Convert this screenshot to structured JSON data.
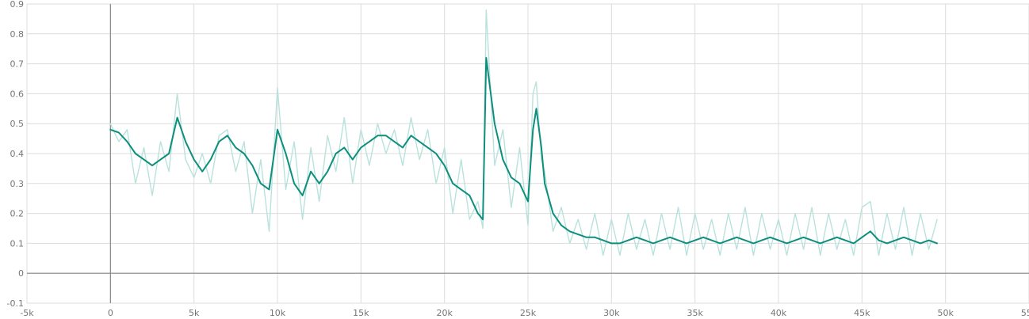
{
  "chart_data": {
    "type": "line",
    "title": "",
    "xlabel": "",
    "ylabel": "",
    "xlim": [
      -5000,
      55000
    ],
    "ylim": [
      -0.1,
      0.9
    ],
    "grid": true,
    "x_ticks": [
      -5000,
      0,
      5000,
      10000,
      15000,
      20000,
      25000,
      30000,
      35000,
      40000,
      45000,
      50000,
      55000
    ],
    "x_tick_labels": [
      "-5k",
      "0",
      "5k",
      "10k",
      "15k",
      "20k",
      "25k",
      "30k",
      "35k",
      "40k",
      "45k",
      "50k",
      "55k"
    ],
    "y_ticks": [
      -0.1,
      0,
      0.1,
      0.2,
      0.3,
      0.4,
      0.5,
      0.6,
      0.7,
      0.8,
      0.9
    ],
    "y_tick_labels": [
      "-0.1",
      "0",
      "0.1",
      "0.2",
      "0.3",
      "0.4",
      "0.5",
      "0.6",
      "0.7",
      "0.8",
      "0.9"
    ],
    "colors": {
      "smoothed": "#0e8f7e",
      "raw": "#b9e2dc"
    },
    "series": [
      {
        "role": "smoothed",
        "x": [
          0,
          500,
          1000,
          1500,
          2000,
          2500,
          3000,
          3500,
          4000,
          4500,
          5000,
          5500,
          6000,
          6500,
          7000,
          7500,
          8000,
          8500,
          9000,
          9500,
          10000,
          10500,
          11000,
          11500,
          12000,
          12500,
          13000,
          13500,
          14000,
          14500,
          15000,
          15500,
          16000,
          16500,
          17000,
          17500,
          18000,
          18500,
          19000,
          19500,
          20000,
          20500,
          21000,
          21500,
          22000,
          22300,
          22500,
          23000,
          23500,
          24000,
          24500,
          25000,
          25300,
          25500,
          25800,
          26000,
          26500,
          27000,
          27500,
          28000,
          28500,
          29000,
          29500,
          30000,
          30500,
          31000,
          31500,
          32000,
          32500,
          33000,
          33500,
          34000,
          34500,
          35000,
          35500,
          36000,
          36500,
          37000,
          37500,
          38000,
          38500,
          39000,
          39500,
          40000,
          40500,
          41000,
          41500,
          42000,
          42500,
          43000,
          43500,
          44000,
          44500,
          45000,
          45500,
          46000,
          46500,
          47000,
          47500,
          48000,
          48500,
          49000,
          49500
        ],
        "y": [
          0.48,
          0.47,
          0.44,
          0.4,
          0.38,
          0.36,
          0.38,
          0.4,
          0.52,
          0.44,
          0.38,
          0.34,
          0.38,
          0.44,
          0.46,
          0.42,
          0.4,
          0.36,
          0.3,
          0.28,
          0.48,
          0.4,
          0.3,
          0.26,
          0.34,
          0.3,
          0.34,
          0.4,
          0.42,
          0.38,
          0.42,
          0.44,
          0.46,
          0.46,
          0.44,
          0.42,
          0.46,
          0.44,
          0.42,
          0.4,
          0.36,
          0.3,
          0.28,
          0.26,
          0.2,
          0.18,
          0.72,
          0.5,
          0.38,
          0.32,
          0.3,
          0.24,
          0.48,
          0.55,
          0.42,
          0.3,
          0.2,
          0.16,
          0.14,
          0.13,
          0.12,
          0.12,
          0.11,
          0.1,
          0.1,
          0.11,
          0.12,
          0.11,
          0.1,
          0.11,
          0.12,
          0.11,
          0.1,
          0.11,
          0.12,
          0.11,
          0.1,
          0.11,
          0.12,
          0.11,
          0.1,
          0.11,
          0.12,
          0.11,
          0.1,
          0.11,
          0.12,
          0.11,
          0.1,
          0.11,
          0.12,
          0.11,
          0.1,
          0.12,
          0.14,
          0.11,
          0.1,
          0.11,
          0.12,
          0.11,
          0.1,
          0.11,
          0.1
        ]
      },
      {
        "role": "raw",
        "x": [
          0,
          500,
          1000,
          1500,
          2000,
          2500,
          3000,
          3500,
          4000,
          4500,
          5000,
          5500,
          6000,
          6500,
          7000,
          7500,
          8000,
          8500,
          9000,
          9500,
          10000,
          10500,
          11000,
          11500,
          12000,
          12500,
          13000,
          13500,
          14000,
          14500,
          15000,
          15500,
          16000,
          16500,
          17000,
          17500,
          18000,
          18500,
          19000,
          19500,
          20000,
          20500,
          21000,
          21500,
          22000,
          22300,
          22500,
          23000,
          23500,
          24000,
          24500,
          25000,
          25300,
          25500,
          25800,
          26000,
          26500,
          27000,
          27500,
          28000,
          28500,
          29000,
          29500,
          30000,
          30500,
          31000,
          31500,
          32000,
          32500,
          33000,
          33500,
          34000,
          34500,
          35000,
          35500,
          36000,
          36500,
          37000,
          37500,
          38000,
          38500,
          39000,
          39500,
          40000,
          40500,
          41000,
          41500,
          42000,
          42500,
          43000,
          43500,
          44000,
          44500,
          45000,
          45500,
          46000,
          46500,
          47000,
          47500,
          48000,
          48500,
          49000,
          49500
        ],
        "y": [
          0.5,
          0.44,
          0.48,
          0.3,
          0.42,
          0.26,
          0.44,
          0.34,
          0.6,
          0.38,
          0.32,
          0.4,
          0.3,
          0.46,
          0.48,
          0.34,
          0.44,
          0.2,
          0.38,
          0.14,
          0.62,
          0.28,
          0.44,
          0.18,
          0.42,
          0.24,
          0.46,
          0.34,
          0.52,
          0.3,
          0.48,
          0.36,
          0.5,
          0.4,
          0.48,
          0.36,
          0.52,
          0.38,
          0.48,
          0.3,
          0.42,
          0.2,
          0.38,
          0.18,
          0.24,
          0.15,
          0.88,
          0.36,
          0.48,
          0.22,
          0.42,
          0.16,
          0.6,
          0.64,
          0.38,
          0.34,
          0.14,
          0.22,
          0.1,
          0.18,
          0.08,
          0.2,
          0.06,
          0.18,
          0.06,
          0.2,
          0.08,
          0.18,
          0.06,
          0.2,
          0.08,
          0.22,
          0.06,
          0.2,
          0.08,
          0.18,
          0.06,
          0.2,
          0.08,
          0.22,
          0.06,
          0.2,
          0.08,
          0.18,
          0.06,
          0.2,
          0.08,
          0.22,
          0.06,
          0.2,
          0.08,
          0.18,
          0.06,
          0.22,
          0.24,
          0.06,
          0.2,
          0.08,
          0.22,
          0.06,
          0.2,
          0.08,
          0.18
        ]
      }
    ]
  }
}
